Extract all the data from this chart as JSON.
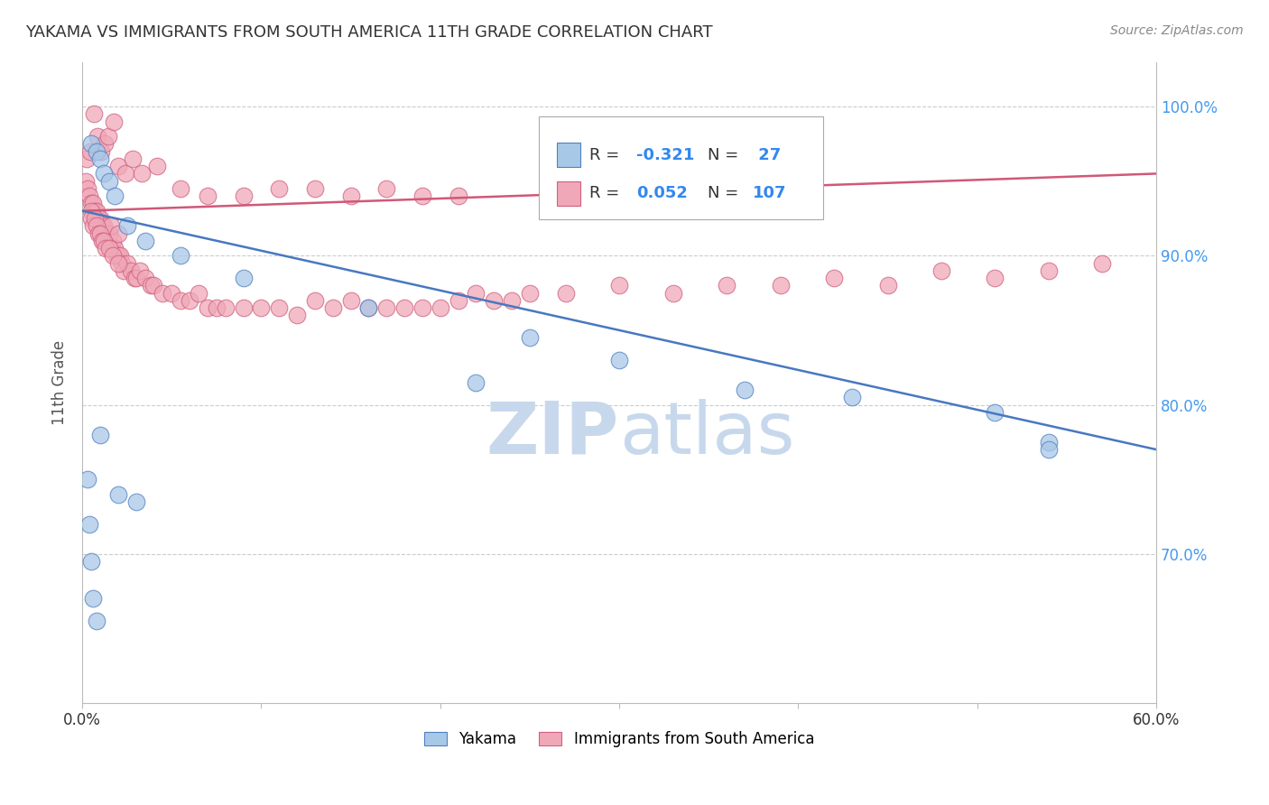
{
  "title": "YAKAMA VS IMMIGRANTS FROM SOUTH AMERICA 11TH GRADE CORRELATION CHART",
  "source": "Source: ZipAtlas.com",
  "ylabel": "11th Grade",
  "xlim": [
    0.0,
    60.0
  ],
  "ylim": [
    60.0,
    103.0
  ],
  "yticks": [
    70.0,
    80.0,
    90.0,
    100.0
  ],
  "ytick_labels": [
    "70.0%",
    "80.0%",
    "90.0%",
    "100.0%"
  ],
  "xticks": [
    0.0,
    10.0,
    20.0,
    30.0,
    40.0,
    50.0,
    60.0
  ],
  "blue_color": "#a8c8e8",
  "pink_color": "#f0a8b8",
  "blue_edge_color": "#5080c0",
  "pink_edge_color": "#d06080",
  "blue_line_color": "#4878c0",
  "pink_line_color": "#d05878",
  "watermark_color": "#c8d8ec",
  "legend_blue_label": "R = -0.321   N =  27",
  "legend_pink_label": "R =  0.052   N = 107",
  "blue_line_x": [
    0.0,
    60.0
  ],
  "blue_line_y": [
    93.0,
    77.0
  ],
  "pink_line_x": [
    0.0,
    60.0
  ],
  "pink_line_y": [
    93.0,
    95.5
  ],
  "blue_x": [
    0.5,
    0.8,
    1.0,
    1.2,
    1.5,
    1.8,
    2.5,
    3.5,
    5.5,
    9.0,
    16.0,
    25.0,
    30.0,
    37.0,
    43.0,
    51.0,
    54.0,
    0.3,
    0.4,
    0.5,
    0.6,
    0.8,
    1.0,
    2.0,
    3.0,
    22.0,
    54.0
  ],
  "blue_y": [
    97.5,
    97.0,
    96.5,
    95.5,
    95.0,
    94.0,
    92.0,
    91.0,
    90.0,
    88.5,
    86.5,
    84.5,
    83.0,
    81.0,
    80.5,
    79.5,
    77.5,
    75.0,
    72.0,
    69.5,
    67.0,
    65.5,
    78.0,
    74.0,
    73.5,
    81.5,
    77.0
  ],
  "pink_x": [
    0.2,
    0.3,
    0.4,
    0.5,
    0.6,
    0.7,
    0.8,
    0.9,
    1.0,
    1.1,
    1.2,
    1.3,
    1.4,
    1.5,
    1.6,
    1.7,
    1.8,
    1.9,
    2.0,
    2.1,
    2.2,
    2.3,
    2.5,
    2.7,
    2.9,
    3.0,
    3.2,
    3.5,
    3.8,
    4.0,
    4.5,
    5.0,
    5.5,
    6.0,
    6.5,
    7.0,
    7.5,
    8.0,
    9.0,
    10.0,
    11.0,
    12.0,
    13.0,
    14.0,
    15.0,
    16.0,
    17.0,
    18.0,
    19.0,
    20.0,
    21.0,
    22.0,
    23.0,
    24.0,
    25.0,
    27.0,
    30.0,
    33.0,
    36.0,
    39.0,
    42.0,
    45.0,
    48.0,
    51.0,
    54.0,
    57.0,
    0.25,
    0.45,
    0.65,
    0.85,
    1.05,
    1.25,
    1.45,
    1.75,
    2.0,
    2.4,
    2.8,
    3.3,
    4.2,
    5.5,
    7.0,
    9.0,
    11.0,
    13.0,
    15.0,
    17.0,
    19.0,
    21.0,
    1.6,
    2.0,
    0.5,
    0.5,
    0.6,
    0.7,
    0.8,
    0.9,
    1.0,
    1.1,
    1.2,
    1.3,
    1.5,
    1.7,
    2.0
  ],
  "pink_y": [
    95.0,
    94.5,
    94.0,
    93.5,
    93.5,
    93.0,
    93.0,
    92.5,
    92.5,
    92.0,
    92.0,
    91.5,
    91.0,
    91.5,
    90.5,
    91.0,
    90.5,
    90.0,
    90.0,
    90.0,
    89.5,
    89.0,
    89.5,
    89.0,
    88.5,
    88.5,
    89.0,
    88.5,
    88.0,
    88.0,
    87.5,
    87.5,
    87.0,
    87.0,
    87.5,
    86.5,
    86.5,
    86.5,
    86.5,
    86.5,
    86.5,
    86.0,
    87.0,
    86.5,
    87.0,
    86.5,
    86.5,
    86.5,
    86.5,
    86.5,
    87.0,
    87.5,
    87.0,
    87.0,
    87.5,
    87.5,
    88.0,
    87.5,
    88.0,
    88.0,
    88.5,
    88.0,
    89.0,
    88.5,
    89.0,
    89.5,
    96.5,
    97.0,
    99.5,
    98.0,
    97.0,
    97.5,
    98.0,
    99.0,
    96.0,
    95.5,
    96.5,
    95.5,
    96.0,
    94.5,
    94.0,
    94.0,
    94.5,
    94.5,
    94.0,
    94.5,
    94.0,
    94.0,
    92.0,
    91.5,
    93.0,
    92.5,
    92.0,
    92.5,
    92.0,
    91.5,
    91.5,
    91.0,
    91.0,
    90.5,
    90.5,
    90.0,
    89.5
  ]
}
